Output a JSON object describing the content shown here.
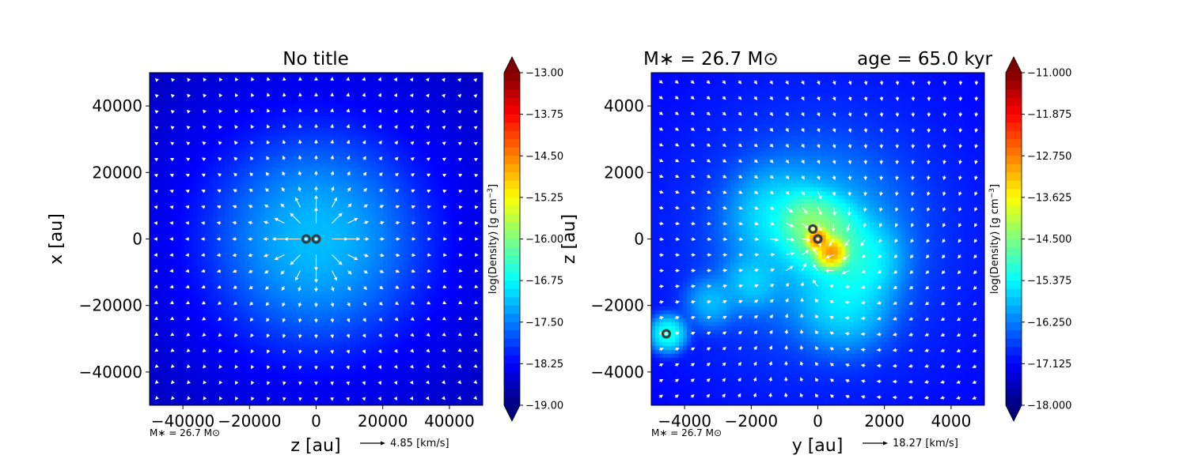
{
  "colormap": [
    "#00007f",
    "#0000ff",
    "#007fff",
    "#00ffff",
    "#7fff7f",
    "#ffff00",
    "#ff7f00",
    "#ff0000",
    "#7f0000"
  ],
  "vector_color": "#ffffff",
  "sink_marker_color": "#3a3a3a",
  "chart_data": [
    {
      "type": "heatmap",
      "title": "No title",
      "title_right": "",
      "xlabel": "z [au]",
      "ylabel": "x [au]",
      "xlim": [
        -50000,
        50000
      ],
      "ylim": [
        -50000,
        50000
      ],
      "xticks": [
        -40000,
        -20000,
        0,
        20000,
        40000
      ],
      "yticks": [
        -40000,
        -20000,
        0,
        20000,
        40000
      ],
      "xtick_labels": [
        "−40000",
        "−20000",
        "0",
        "20000",
        "40000"
      ],
      "ytick_labels": [
        "−40000",
        "−20000",
        "0",
        "20000",
        "40000"
      ],
      "colorbar": {
        "label": "log(Density) [g cm$^{-3}$]",
        "label_text": "log(Density) [g cm",
        "label_sup": "−3",
        "label_end": "]",
        "min": -19.0,
        "max": -13.0,
        "ticks": [
          "−13.00",
          "−13.75",
          "−14.50",
          "−15.25",
          "−16.00",
          "−16.75",
          "−17.50",
          "−18.25",
          "−19.00"
        ],
        "extend": "both"
      },
      "mass_label": "M∗ = 26.7 M⊙",
      "vector_key": "4.85 [km/s]",
      "vector_field": "radial_infall",
      "density_features": [
        {
          "x": 0,
          "y": 0,
          "peak": -17.2,
          "sigma": 14000
        },
        {
          "x": 0,
          "y": 0,
          "peak": -18.1,
          "sigma": 30000
        }
      ],
      "background_level": -18.7,
      "sinks": [
        {
          "x": -3000,
          "y": 0
        },
        {
          "x": 0,
          "y": 0
        }
      ]
    },
    {
      "type": "heatmap",
      "title": "M∗ = 26.7 M⊙",
      "title_right": "age = 65.0 kyr",
      "xlabel": "y [au]",
      "ylabel": "z [au]",
      "xlim": [
        -5000,
        5000
      ],
      "ylim": [
        -5000,
        5000
      ],
      "xticks": [
        -4000,
        -2000,
        0,
        2000,
        4000
      ],
      "yticks": [
        -4000,
        -2000,
        0,
        2000,
        4000
      ],
      "xtick_labels": [
        "−4000",
        "−2000",
        "0",
        "2000",
        "4000"
      ],
      "ytick_labels": [
        "−4000",
        "−2000",
        "0",
        "2000",
        "4000"
      ],
      "colorbar": {
        "label": "log(Density) [g cm$^{-3}$]",
        "label_text": "log(Density) [g cm",
        "label_sup": "−3",
        "label_end": "]",
        "min": -18.0,
        "max": -11.0,
        "ticks": [
          "−11.000",
          "−11.875",
          "−12.750",
          "−13.625",
          "−14.500",
          "−15.375",
          "−16.250",
          "−17.125",
          "−18.000"
        ],
        "extend": "both"
      },
      "mass_label": "M∗ = 26.7 M⊙",
      "vector_key": "18.27 [km/s]",
      "vector_field": "mixed_inflow",
      "density_features": [
        {
          "x": 0,
          "y": 0,
          "peak": -15.8,
          "sigma": 1300
        },
        {
          "x": 200,
          "y": 100,
          "peak": -14.6,
          "sigma": 500
        },
        {
          "x": 400,
          "y": -400,
          "peak": -12.9,
          "sigma": 180
        },
        {
          "x": 0,
          "y": 0,
          "peak": -12.6,
          "sigma": 130
        },
        {
          "x": -300,
          "y": 500,
          "peak": -14.6,
          "sigma": 400
        },
        {
          "x": 1200,
          "y": -600,
          "peak": -15.3,
          "sigma": 600
        },
        {
          "x": 800,
          "y": -1900,
          "peak": -15.6,
          "sigma": 700
        },
        {
          "x": -1200,
          "y": 700,
          "peak": -15.6,
          "sigma": 700
        },
        {
          "x": -2000,
          "y": -1300,
          "peak": -15.8,
          "sigma": 450
        },
        {
          "x": -3200,
          "y": -1900,
          "peak": -15.9,
          "sigma": 400
        },
        {
          "x": -4500,
          "y": -2850,
          "peak": -15.2,
          "sigma": 250
        },
        {
          "x": 0,
          "y": 0,
          "peak": -16.8,
          "sigma": 3200
        }
      ],
      "background_level": -17.2,
      "sinks": [
        {
          "x": -150,
          "y": 300
        },
        {
          "x": 0,
          "y": 0
        },
        {
          "x": -4550,
          "y": -2850
        }
      ]
    }
  ]
}
